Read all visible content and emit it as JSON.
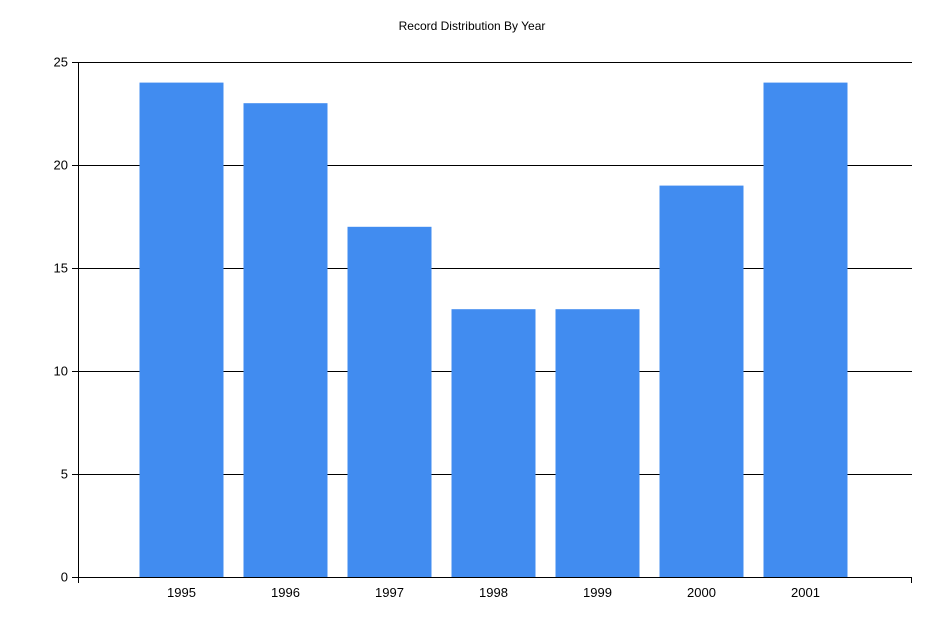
{
  "chart_data": {
    "type": "bar",
    "title": "Record Distribution By Year",
    "categories": [
      "1995",
      "1996",
      "1997",
      "1998",
      "1999",
      "2000",
      "2001"
    ],
    "values": [
      24,
      23,
      17,
      13,
      13,
      19,
      24
    ],
    "ylim": [
      0,
      25
    ],
    "yticks": [
      0,
      5,
      10,
      15,
      20,
      25
    ],
    "xlabel": "",
    "ylabel": "",
    "grid": "horizontal",
    "legend": "none",
    "colors": {
      "bar": "#418CF0",
      "grid": "#000000",
      "text": "#000000"
    }
  }
}
